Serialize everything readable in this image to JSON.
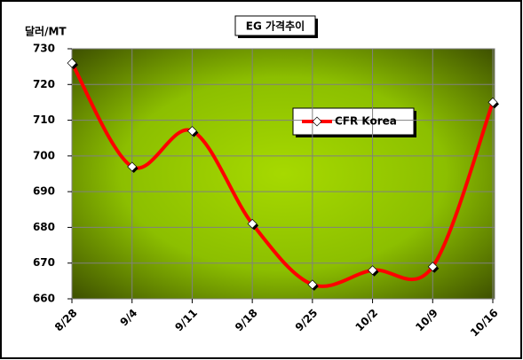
{
  "chart_data": {
    "type": "line",
    "title": "EG 가격추이",
    "y_label": "달러/MT",
    "categories": [
      "8/28",
      "9/4",
      "9/11",
      "9/18",
      "9/25",
      "10/2",
      "10/9",
      "10/16"
    ],
    "series": [
      {
        "name": "CFR Korea",
        "color": "#ff0000",
        "values": [
          726,
          697,
          707,
          681,
          664,
          668,
          669,
          715
        ]
      }
    ],
    "ylim": [
      660,
      730
    ],
    "yticks": [
      660,
      670,
      680,
      690,
      700,
      710,
      720,
      730
    ],
    "grid": true,
    "smooth": true,
    "legend": "upper-right"
  }
}
